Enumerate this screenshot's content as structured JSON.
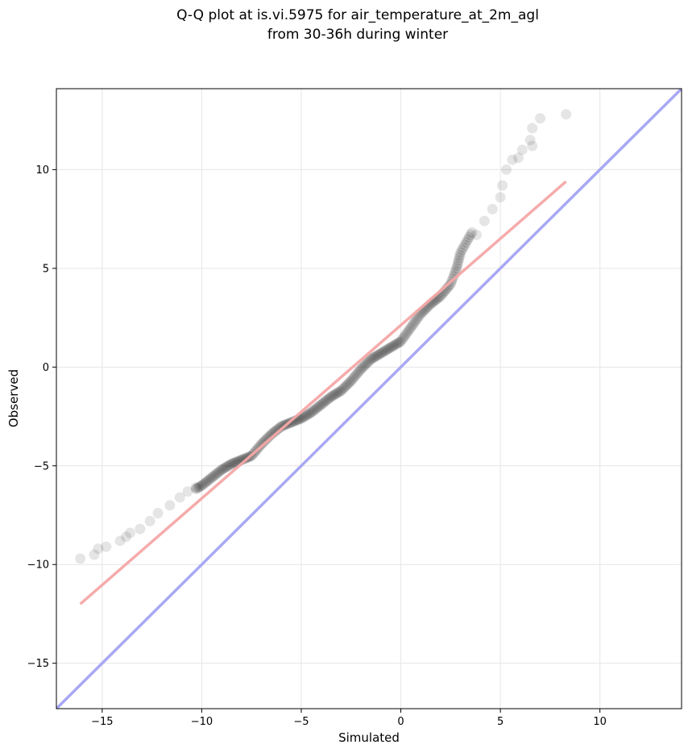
{
  "chart_data": {
    "type": "scatter",
    "title_lines": [
      "Q-Q plot at is.vi.5975 for air_temperature_at_2m_agl",
      "from 30-36h during winter"
    ],
    "xlabel": "Simulated",
    "ylabel": "Observed",
    "xlim": [
      -17.3,
      14.1
    ],
    "ylim": [
      -17.3,
      14.1
    ],
    "xticks": [
      -15,
      -10,
      -5,
      0,
      5,
      10
    ],
    "yticks": [
      -15,
      -10,
      -5,
      0,
      5,
      10
    ],
    "xtick_labels": [
      "−15",
      "−10",
      "−5",
      "0",
      "5",
      "10"
    ],
    "ytick_labels": [
      "−15",
      "−10",
      "−5",
      "0",
      "5",
      "10"
    ],
    "grid": true,
    "colors": {
      "points": "#000000",
      "fit_line": "#f4a6a6",
      "identity_line": "#a8a8f4",
      "grid": "#e6e6e6"
    },
    "identity_line": {
      "x": [
        -17.3,
        14.1
      ],
      "y": [
        -17.3,
        14.1
      ]
    },
    "fit_line": {
      "x": [
        -16.1,
        8.3
      ],
      "y": [
        -12.0,
        9.4
      ]
    },
    "quantile_curve": {
      "x": [
        -16.1,
        -15.4,
        -14.1,
        -13.1,
        -12.0,
        -11.0,
        -10.0,
        -9.5,
        -9.0,
        -8.5,
        -8.0,
        -7.5,
        -7.0,
        -6.5,
        -6.0,
        -5.5,
        -5.0,
        -4.5,
        -4.0,
        -3.5,
        -3.0,
        -2.5,
        -2.0,
        -1.5,
        -1.0,
        -0.5,
        0.0,
        0.5,
        1.0,
        1.5,
        2.0,
        2.5,
        2.8,
        3.0,
        3.5,
        4.0,
        4.5,
        5.0,
        5.2,
        5.5,
        6.0,
        6.5,
        6.8,
        7.0,
        8.3
      ],
      "y": [
        -9.7,
        -9.5,
        -8.8,
        -8.2,
        -7.3,
        -6.6,
        -6.0,
        -5.6,
        -5.2,
        -4.9,
        -4.7,
        -4.5,
        -3.9,
        -3.4,
        -3.0,
        -2.8,
        -2.6,
        -2.3,
        -1.9,
        -1.5,
        -1.2,
        -0.7,
        -0.1,
        0.4,
        0.7,
        1.0,
        1.3,
        2.0,
        2.7,
        3.2,
        3.6,
        4.2,
        5.0,
        5.8,
        6.7,
        7.5,
        8.3,
        9.2,
        10.0,
        10.5,
        10.9,
        11.3,
        12.2,
        12.6,
        12.8
      ]
    },
    "tail_points": {
      "x": [
        -16.1,
        -15.4,
        -15.2,
        -14.8,
        -14.1,
        -13.8,
        -13.6,
        -13.1,
        -12.6,
        -12.2,
        -11.6,
        -11.1,
        -10.7,
        -10.3,
        3.8,
        4.2,
        4.6,
        5.0,
        5.1,
        5.3,
        5.6,
        5.9,
        6.1,
        6.6,
        6.5,
        6.6,
        7.0,
        8.3
      ],
      "y": [
        -9.7,
        -9.5,
        -9.2,
        -9.1,
        -8.8,
        -8.6,
        -8.4,
        -8.2,
        -7.8,
        -7.4,
        -7.0,
        -6.6,
        -6.3,
        -6.1,
        6.7,
        7.4,
        8.0,
        8.6,
        9.2,
        10.0,
        10.5,
        10.6,
        11.0,
        11.2,
        11.5,
        12.1,
        12.6,
        12.8
      ]
    }
  }
}
